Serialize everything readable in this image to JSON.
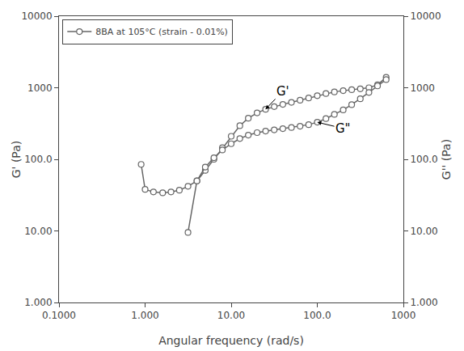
{
  "chart_data": {
    "type": "line",
    "xlabel": "Angular frequency (rad/s)",
    "ylabel": "G' (Pa)",
    "y2label": "G'' (Pa)",
    "log": true,
    "grid": false,
    "legend": "upper left",
    "xlim": [
      0.1,
      1000
    ],
    "ylim": [
      1,
      10000
    ],
    "y2lim": [
      1,
      10000
    ],
    "xticks": [
      {
        "value": 0.1,
        "label": "0.1000"
      },
      {
        "value": 1,
        "label": "1.000"
      },
      {
        "value": 10,
        "label": "10.00"
      },
      {
        "value": 100,
        "label": "100.0"
      },
      1000
    ],
    "yticks": [
      {
        "value": 1,
        "label": "1.000"
      },
      {
        "value": 10,
        "label": "10.00"
      },
      {
        "value": 100,
        "label": "100.0"
      },
      1000,
      10000
    ],
    "y2ticks": [
      {
        "value": 1,
        "label": "1.000"
      },
      {
        "value": 10,
        "label": "10.00"
      },
      {
        "value": 100,
        "label": "100.0"
      },
      1000,
      10000
    ],
    "series": [
      {
        "name": "8BA at 105°C (strain - 0.01%)",
        "color": "#666666",
        "marker": "o",
        "x": [
          0.9,
          1.0,
          1.25,
          1.6,
          2.0,
          2.5,
          3.15,
          4.0,
          5.0,
          6.3,
          7.9,
          10.0,
          12.6,
          15.8,
          20.0,
          25.1,
          31.6,
          39.8,
          50.1,
          63.1,
          79.4,
          100,
          126,
          158,
          200,
          251,
          316,
          398,
          501,
          631
        ],
        "values": [
          85,
          38,
          35,
          34,
          35,
          37,
          42,
          50,
          70,
          100,
          145,
          210,
          295,
          375,
          445,
          500,
          545,
          585,
          625,
          670,
          720,
          775,
          830,
          875,
          910,
          940,
          965,
          1000,
          1100,
          1400
        ]
      },
      {
        "color": "#666666",
        "marker": "o",
        "axis": "y2",
        "x": [
          3.15,
          4.0,
          5.0,
          6.3,
          7.9,
          10.0,
          12.6,
          15.8,
          20.0,
          25.1,
          31.6,
          39.8,
          50.1,
          63.1,
          79.4,
          100,
          126,
          158,
          200,
          251,
          316,
          398,
          501,
          631
        ],
        "values": [
          9.5,
          50,
          78,
          105,
          135,
          165,
          195,
          218,
          236,
          248,
          258,
          268,
          278,
          290,
          305,
          330,
          370,
          425,
          490,
          580,
          700,
          860,
          1060,
          1300
        ]
      }
    ],
    "annotations": [
      {
        "text": "G'",
        "x": 25,
        "y": 500,
        "text_x": 40,
        "text_y": 900
      },
      {
        "text": "G\"",
        "x": 100,
        "y": 330,
        "text_x": 200,
        "text_y": 270
      }
    ]
  }
}
